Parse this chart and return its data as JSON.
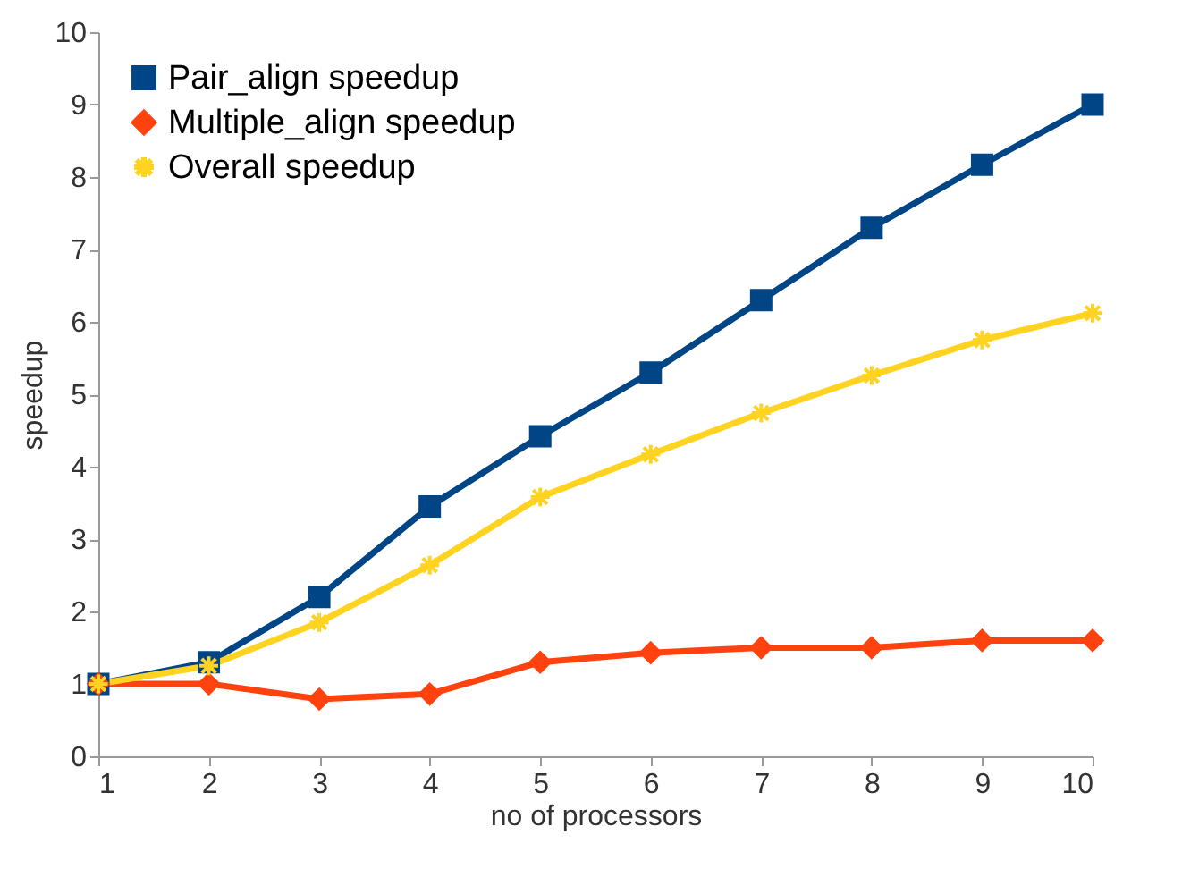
{
  "chart_data": {
    "type": "line",
    "xlabel": "no of processors",
    "ylabel": "speedup",
    "x": [
      1,
      2,
      3,
      4,
      5,
      6,
      7,
      8,
      9,
      10
    ],
    "series": [
      {
        "name": "Pair_align speedup",
        "color": "#004586",
        "marker": "square",
        "values": [
          1.0,
          1.3,
          2.2,
          3.45,
          4.42,
          5.3,
          6.3,
          7.3,
          8.17,
          9.0
        ]
      },
      {
        "name": "Multiple_align speedup",
        "color": "#ff420e",
        "marker": "diamond",
        "values": [
          1.0,
          1.0,
          0.79,
          0.86,
          1.3,
          1.43,
          1.5,
          1.5,
          1.6,
          1.6
        ]
      },
      {
        "name": "Overall speedup",
        "color": "#ffd320",
        "marker": "cross",
        "values": [
          1.0,
          1.25,
          1.85,
          2.64,
          3.58,
          4.17,
          4.74,
          5.26,
          5.75,
          6.12
        ]
      }
    ],
    "xlim": [
      1,
      10
    ],
    "xticks": [
      1,
      2,
      3,
      4,
      5,
      6,
      7,
      8,
      9,
      10
    ],
    "ylim": [
      0,
      10
    ],
    "yticks": [
      0,
      1,
      2,
      3,
      4,
      5,
      6,
      7,
      8,
      9,
      10
    ],
    "grid": false,
    "legend": "top left",
    "line_style": "solid"
  }
}
